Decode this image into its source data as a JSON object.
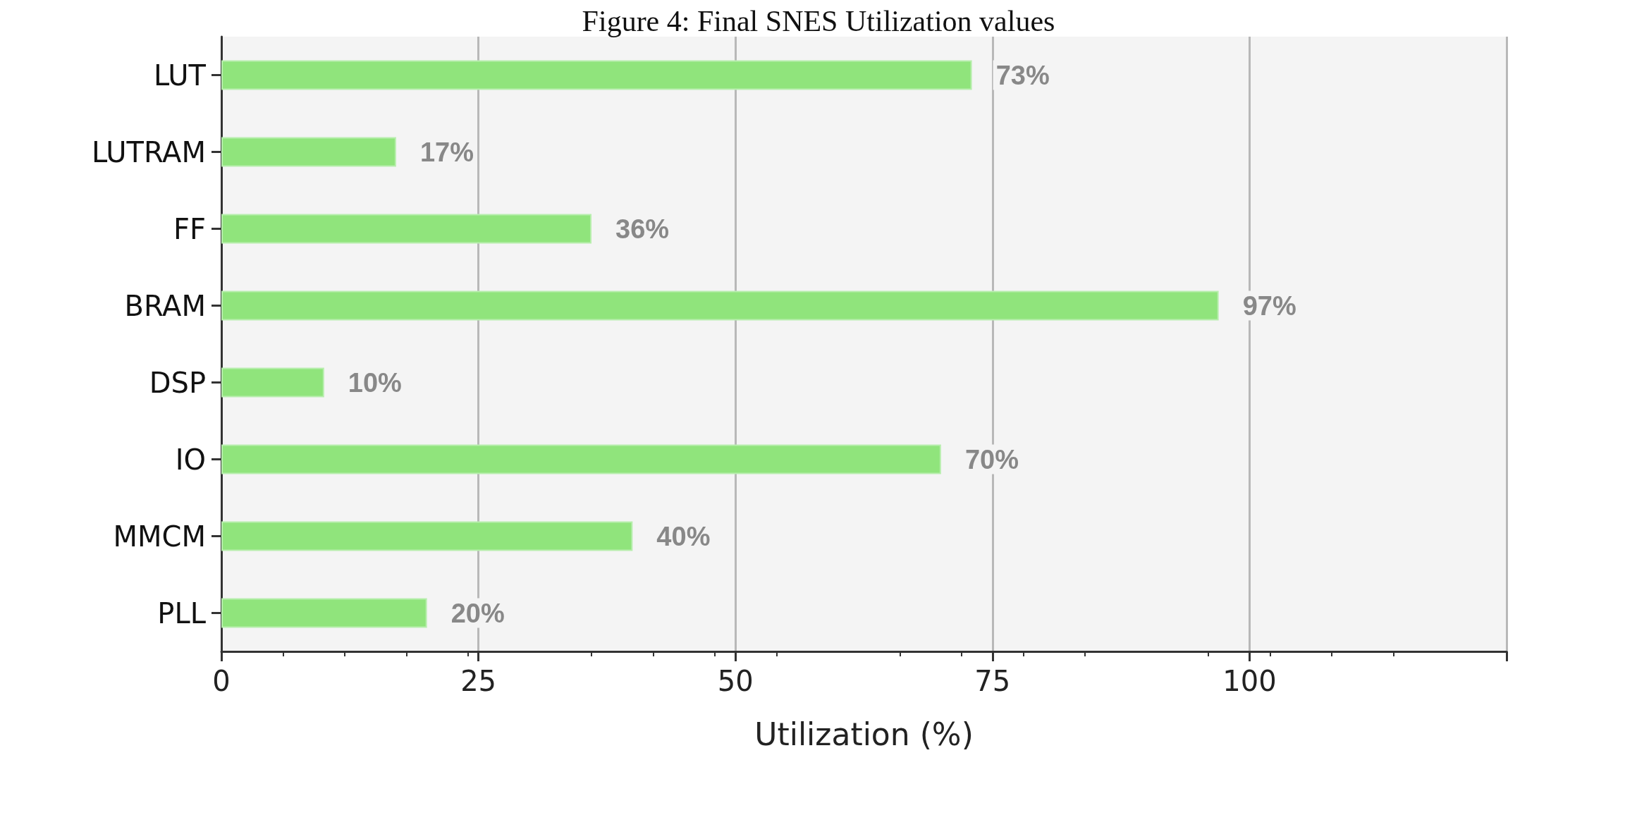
{
  "chart_data": {
    "type": "bar",
    "title": "Figure 4: Final SNES Utilization values",
    "xlabel": "Utilization (%)",
    "orientation": "horizontal",
    "categories": [
      "LUT",
      "LUTRAM",
      "FF",
      "BRAM",
      "DSP",
      "IO",
      "MMCM",
      "PLL"
    ],
    "values": [
      73,
      17,
      36,
      97,
      10,
      70,
      40,
      20
    ],
    "value_labels": [
      "73%",
      "17%",
      "36%",
      "97%",
      "10%",
      "70%",
      "40%",
      "20%"
    ],
    "color": "#90e47c",
    "xlim": [
      0,
      125
    ],
    "xticks": [
      0,
      25,
      50,
      75,
      100,
      {
        "value": 125,
        "label": null
      }
    ],
    "grid": "x"
  }
}
